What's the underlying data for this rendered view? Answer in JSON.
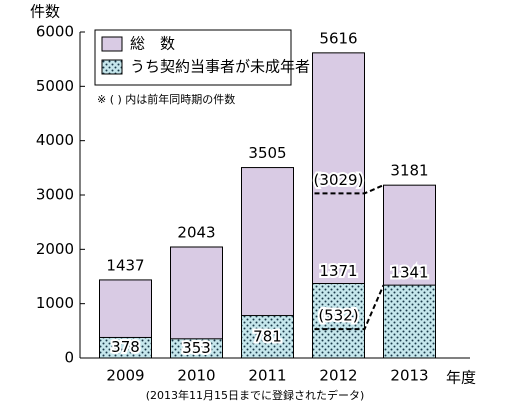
{
  "chart_data": {
    "type": "bar",
    "y_label": "件数",
    "x_label": "年度",
    "footnote": "(2013年11月15日までに登録されたデータ)",
    "note": "※ ( ) 内は前年同時期の件数",
    "categories": [
      "2009",
      "2010",
      "2011",
      "2012",
      "2013"
    ],
    "series": [
      {
        "name": "総　数",
        "color": "#d9cbe4",
        "values": [
          1437,
          2043,
          3505,
          5616,
          3181
        ]
      },
      {
        "name": "うち契約当事者が未成年者",
        "color": "#c6e7ec",
        "values": [
          378,
          353,
          781,
          1371,
          1341
        ]
      }
    ],
    "previous_period": {
      "category": "2012",
      "values": [
        3029,
        532
      ],
      "value_labels": [
        "(3029)",
        "(532)"
      ]
    },
    "ylim": [
      0,
      6000
    ],
    "yticks": [
      0,
      1000,
      2000,
      3000,
      4000,
      5000,
      6000
    ]
  }
}
